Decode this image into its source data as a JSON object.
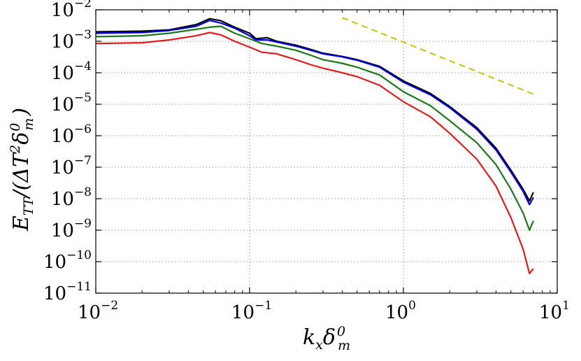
{
  "chart_data": {
    "type": "line",
    "xscale": "log",
    "yscale": "log",
    "xlim": [
      0.01,
      10
    ],
    "ylim": [
      1e-11,
      0.01
    ],
    "x_ticks": [
      {
        "base": "10",
        "exp": "−2",
        "value": 0.01
      },
      {
        "base": "10",
        "exp": "−1",
        "value": 0.1
      },
      {
        "base": "10",
        "exp": "0",
        "value": 1
      },
      {
        "base": "10",
        "exp": "1",
        "value": 10
      }
    ],
    "y_ticks": [
      {
        "base": "10",
        "exp": "−2",
        "value": 0.01
      },
      {
        "base": "10",
        "exp": "−3",
        "value": 0.001
      },
      {
        "base": "10",
        "exp": "−4",
        "value": 0.0001
      },
      {
        "base": "10",
        "exp": "−5",
        "value": 1e-05
      },
      {
        "base": "10",
        "exp": "−6",
        "value": 1e-06
      },
      {
        "base": "10",
        "exp": "−7",
        "value": 1e-07
      },
      {
        "base": "10",
        "exp": "−8",
        "value": 1e-08
      },
      {
        "base": "10",
        "exp": "−9",
        "value": 1e-09
      },
      {
        "base": "10",
        "exp": "−10",
        "value": 1e-10
      },
      {
        "base": "10",
        "exp": "−11",
        "value": 1e-11
      }
    ],
    "xlabel": {
      "main": "k",
      "sub1": "x",
      "main2": "δ",
      "sub2": "m",
      "sup2": "0"
    },
    "ylabel": {
      "main": "E",
      "sub": "TT",
      "rest": "/(ΔT",
      "sq": "2",
      "delta": "δ",
      "dsub": "m",
      "dsup": "0",
      "close": ")"
    },
    "grid": true,
    "series": [
      {
        "name": "black",
        "color": "#000000",
        "points": [
          [
            0.01,
            0.002
          ],
          [
            0.02,
            0.0021
          ],
          [
            0.03,
            0.0023
          ],
          [
            0.045,
            0.0034
          ],
          [
            0.055,
            0.0052
          ],
          [
            0.065,
            0.0045
          ],
          [
            0.08,
            0.0028
          ],
          [
            0.1,
            0.0018
          ],
          [
            0.11,
            0.0012
          ],
          [
            0.13,
            0.0013
          ],
          [
            0.15,
            0.001
          ],
          [
            0.2,
            0.00075
          ],
          [
            0.25,
            0.00055
          ],
          [
            0.3,
            0.00042
          ],
          [
            0.4,
            0.00033
          ],
          [
            0.5,
            0.00026
          ],
          [
            0.7,
            0.00016
          ],
          [
            1.0,
            5.5e-05
          ],
          [
            1.5,
            2.2e-05
          ],
          [
            2.0,
            8.5e-06
          ],
          [
            3.0,
            1.8e-06
          ],
          [
            4.0,
            4e-07
          ],
          [
            5.0,
            8e-08
          ],
          [
            6.0,
            2e-08
          ],
          [
            6.6,
            8.5e-09
          ],
          [
            7.0,
            1.6e-08
          ]
        ]
      },
      {
        "name": "blue",
        "color": "#0000e6",
        "points": [
          [
            0.01,
            0.0018
          ],
          [
            0.02,
            0.0019
          ],
          [
            0.03,
            0.0022
          ],
          [
            0.045,
            0.003
          ],
          [
            0.055,
            0.0046
          ],
          [
            0.065,
            0.0038
          ],
          [
            0.08,
            0.0026
          ],
          [
            0.1,
            0.0015
          ],
          [
            0.11,
            0.0011
          ],
          [
            0.13,
            0.0011
          ],
          [
            0.15,
            0.00095
          ],
          [
            0.2,
            0.0007
          ],
          [
            0.25,
            0.00052
          ],
          [
            0.3,
            0.0004
          ],
          [
            0.4,
            0.00032
          ],
          [
            0.5,
            0.00025
          ],
          [
            0.7,
            0.00015
          ],
          [
            1.0,
            5e-05
          ],
          [
            1.5,
            2e-05
          ],
          [
            2.0,
            7.8e-06
          ],
          [
            3.0,
            1.6e-06
          ],
          [
            4.0,
            3.5e-07
          ],
          [
            5.0,
            7e-08
          ],
          [
            6.0,
            1.7e-08
          ],
          [
            6.6,
            6.5e-09
          ],
          [
            7.0,
            1.1e-08
          ]
        ]
      },
      {
        "name": "green",
        "color": "#1a7a1a",
        "points": [
          [
            0.01,
            0.0014
          ],
          [
            0.02,
            0.0015
          ],
          [
            0.03,
            0.0018
          ],
          [
            0.045,
            0.0024
          ],
          [
            0.055,
            0.0028
          ],
          [
            0.065,
            0.003
          ],
          [
            0.08,
            0.0018
          ],
          [
            0.1,
            0.0012
          ],
          [
            0.12,
            0.00085
          ],
          [
            0.15,
            0.0007
          ],
          [
            0.2,
            0.00052
          ],
          [
            0.25,
            0.00036
          ],
          [
            0.3,
            0.00026
          ],
          [
            0.4,
            0.0002
          ],
          [
            0.5,
            0.00015
          ],
          [
            0.7,
            8.5e-05
          ],
          [
            1.0,
            2.5e-05
          ],
          [
            1.5,
            9e-06
          ],
          [
            2.0,
            3e-06
          ],
          [
            3.0,
            6e-07
          ],
          [
            4.0,
            1.2e-07
          ],
          [
            5.0,
            2e-08
          ],
          [
            6.0,
            3.5e-09
          ],
          [
            6.6,
            1e-09
          ],
          [
            7.0,
            2e-09
          ]
        ]
      },
      {
        "name": "red",
        "color": "#e61a1a",
        "points": [
          [
            0.01,
            0.00085
          ],
          [
            0.02,
            0.0009
          ],
          [
            0.03,
            0.0011
          ],
          [
            0.045,
            0.0015
          ],
          [
            0.055,
            0.0019
          ],
          [
            0.065,
            0.0016
          ],
          [
            0.08,
            0.001
          ],
          [
            0.1,
            0.00065
          ],
          [
            0.12,
            0.00045
          ],
          [
            0.15,
            0.0004
          ],
          [
            0.2,
            0.00026
          ],
          [
            0.25,
            0.00018
          ],
          [
            0.3,
            0.00014
          ],
          [
            0.4,
            0.0001
          ],
          [
            0.5,
            7.5e-05
          ],
          [
            0.7,
            4e-05
          ],
          [
            1.0,
            1.2e-05
          ],
          [
            1.5,
            4e-06
          ],
          [
            2.0,
            1.2e-06
          ],
          [
            3.0,
            1.8e-07
          ],
          [
            4.0,
            2.5e-08
          ],
          [
            5.0,
            2.5e-09
          ],
          [
            6.0,
            2.5e-10
          ],
          [
            6.6,
            4.2e-11
          ],
          [
            7.0,
            6e-11
          ]
        ]
      },
      {
        "name": "reference slope",
        "color": "#c8c81a",
        "dashed": true,
        "points": [
          [
            0.4,
            0.0056
          ],
          [
            7.0,
            2.1e-05
          ]
        ]
      }
    ]
  }
}
